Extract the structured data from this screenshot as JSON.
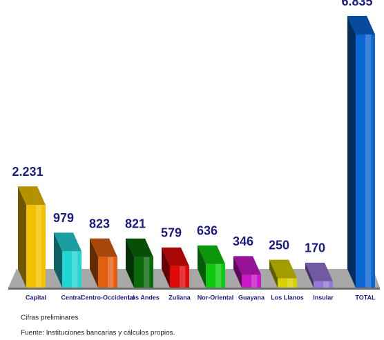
{
  "chart_data": {
    "type": "bar3d",
    "categories": [
      "Capital",
      "Central",
      "Centro-Occidental",
      "Los Andes",
      "Zuliana",
      "Nor-Oriental",
      "Guayana",
      "Los Llanos",
      "Insular",
      "TOTAL"
    ],
    "values": [
      2231,
      979,
      823,
      821,
      579,
      636,
      346,
      250,
      170,
      6835
    ],
    "value_labels": [
      "2.231",
      "979",
      "823",
      "821",
      "579",
      "636",
      "346",
      "250",
      "170",
      "6.835"
    ],
    "colors": [
      "#f2c200",
      "#22d4d4",
      "#e06010",
      "#0a6a0a",
      "#e00a0a",
      "#10c810",
      "#c818c8",
      "#d8d000",
      "#9878d8",
      "#0a66d0"
    ],
    "footnotes": [
      "Cifras preliminares",
      "Fuente: Instituciones bancarias y cálculos propios."
    ]
  }
}
